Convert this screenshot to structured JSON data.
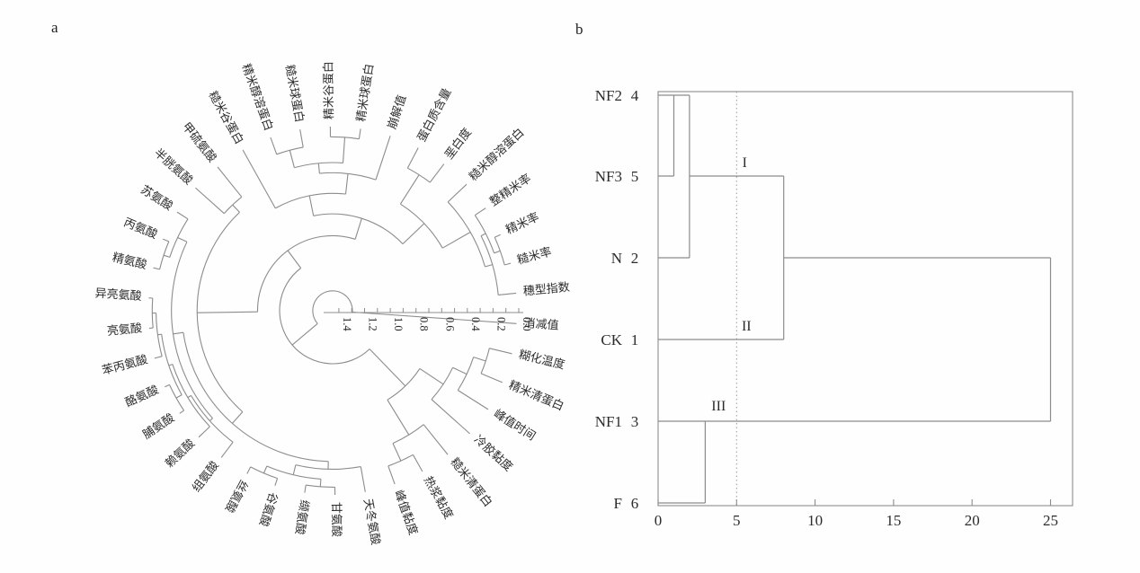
{
  "figure": {
    "panel_a_label": "a",
    "panel_b_label": "b"
  },
  "chart_data": [
    {
      "type": "dendrogram",
      "variant": "circular",
      "panel_label": "a",
      "scale_ticks": [
        "1.4",
        "1.2",
        "1.0",
        "0.8",
        "0.6",
        "0.4",
        "0.2",
        "0.0"
      ],
      "scale_range": [
        0,
        1.4
      ],
      "leaves_ccw_from_3oclock": [
        "消减值",
        "穗型指数",
        "糙米率",
        "精米率",
        "整精米率",
        "糙米醇溶蛋白",
        "垩白度",
        "蛋白质含量",
        "崩解值",
        "精米球蛋白",
        "精米谷蛋白",
        "糙米球蛋白",
        "精米醇溶蛋白",
        "糙米谷蛋白",
        "甲硫氨酸",
        "半胱氨酸",
        "苏氨酸",
        "丙氨酸",
        "精氨酸",
        "异亮氨酸",
        "亮氨酸",
        "苯丙氨酸",
        "酪氨酸",
        "脯氨酸",
        "赖氨酸",
        "组氨酸",
        "丝氨酸",
        "谷氨酸",
        "缬氨酸",
        "甘氨酸",
        "天冬氨酸",
        "峰值黏度",
        "热浆黏度",
        "糙米清蛋白",
        "冷胶黏度",
        "峰值时间",
        "精米清蛋白",
        "糊化温度"
      ],
      "tree": {
        "d": 1.28,
        "c": [
          0,
          {
            "d": 1.02,
            "c": [
              {
                "d": 0.85,
                "c": [
                  {
                    "d": 0.68,
                    "c": [
                      {
                        "d": 0.45,
                        "c": [
                          {
                            "d": 0.2,
                            "c": [
                              {
                                "d": 0.14,
                                "c": [
                                  1,
                                  {
                                    "d": 0.1,
                                    "c": [
                                      {
                                        "d": 0.05,
                                        "c": [
                                          2,
                                          3
                                        ]
                                      },
                                      4
                                    ]
                                  }
                                ]
                              },
                              5
                            ]
                          },
                          {
                            "d": 0.18,
                            "c": [
                              6,
                              7
                            ]
                          }
                        ]
                      },
                      {
                        "d": 0.52,
                        "c": [
                          {
                            "d": 0.36,
                            "c": [
                              8,
                              {
                                "d": 0.28,
                                "c": [
                                  {
                                    "d": 0.08,
                                    "c": [
                                      9,
                                      10
                                    ]
                                  },
                                  {
                                    "d": 0.14,
                                    "c": [
                                      11,
                                      12
                                    ]
                                  }
                                ]
                              }
                            ]
                          },
                          13
                        ]
                      }
                    ]
                  },
                  {
                    "d": 0.38,
                    "c": [
                      {
                        "d": 0.3,
                        "c": [
                          14,
                          15
                        ]
                      },
                      {
                        "d": 0.26,
                        "c": [
                          {
                            "d": 0.18,
                            "c": [
                              {
                                "d": 0.1,
                                "c": [
                                  16,
                                  {
                                    "d": 0.05,
                                    "c": [
                                      17,
                                      18
                                    ]
                                  }
                                ]
                              },
                              {
                                "d": 0.15,
                                "c": [
                                  {
                                    "d": 0.12,
                                    "c": [
                                      {
                                        "d": 0.09,
                                        "c": [
                                          {
                                            "d": 0.06,
                                            "c": [
                                              {
                                                "d": 0.03,
                                                "c": [
                                                  19,
                                                  20
                                                ]
                                              },
                                              21
                                            ]
                                          },
                                          {
                                            "d": 0.04,
                                            "c": [
                                              22,
                                              23
                                            ]
                                          }
                                        ]
                                      },
                                      24
                                    ]
                                  },
                                  25
                                ]
                              }
                            ]
                          },
                          {
                            "d": 0.2,
                            "c": [
                              {
                                "d": 0.12,
                                "c": [
                                  {
                                    "d": 0.06,
                                    "c": [
                                      26,
                                      27
                                    ]
                                  },
                                  {
                                    "d": 0.06,
                                    "c": [
                                      28,
                                      29
                                    ]
                                  }
                                ]
                              },
                              30
                            ]
                          }
                        ]
                      }
                    ]
                  }
                ]
              },
              {
                "d": 0.62,
                "c": [
                  {
                    "d": 0.3,
                    "c": [
                      {
                        "d": 0.15,
                        "c": [
                          31,
                          32
                        ]
                      },
                      33
                    ]
                  },
                  {
                    "d": 0.4,
                    "c": [
                      34,
                      {
                        "d": 0.28,
                        "c": [
                          35,
                          {
                            "d": 0.18,
                            "c": [
                              36,
                              37
                            ]
                          }
                        ]
                      }
                    ]
                  }
                ]
              }
            ]
          }
        ]
      }
    },
    {
      "type": "dendrogram",
      "variant": "rectangular",
      "panel_label": "b",
      "leaves": [
        {
          "name": "NF2",
          "case": "4"
        },
        {
          "name": "NF3",
          "case": "5"
        },
        {
          "name": "N",
          "case": "2"
        },
        {
          "name": "CK",
          "case": "1"
        },
        {
          "name": "NF1",
          "case": "3"
        },
        {
          "name": "F",
          "case": "6"
        }
      ],
      "merges": [
        {
          "members": [
            "NF2",
            "NF3"
          ],
          "distance": 1
        },
        {
          "members": [
            "NF2+NF3",
            "N"
          ],
          "distance": 2
        },
        {
          "members": [
            "NF2+NF3+N",
            "CK"
          ],
          "distance": 8
        },
        {
          "members": [
            "NF1",
            "F"
          ],
          "distance": 3
        },
        {
          "members": [
            "NF2+NF3+N+CK",
            "NF1+F"
          ],
          "distance": 25
        }
      ],
      "x_ticks": [
        "0",
        "5",
        "10",
        "15",
        "20",
        "25"
      ],
      "x_range": [
        0,
        25
      ],
      "reference_line_x": 5,
      "cluster_labels": [
        "I",
        "II",
        "III"
      ]
    }
  ],
  "colors": {
    "line": "#8c8c8c",
    "text": "#2b2b2b",
    "dashed": "#9a9a9a"
  }
}
